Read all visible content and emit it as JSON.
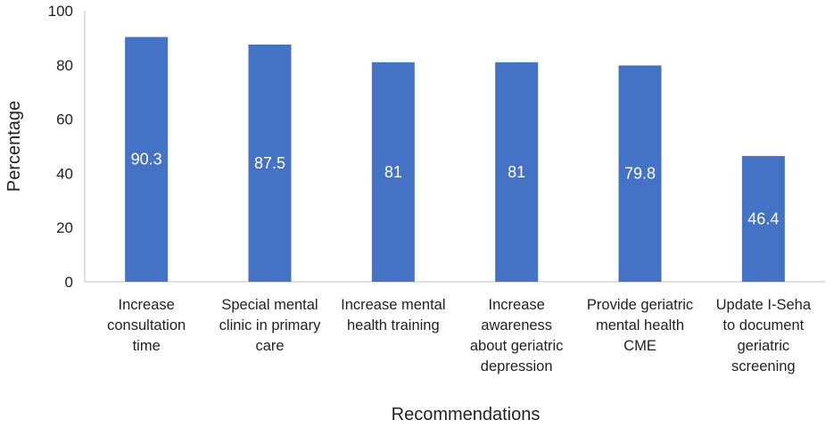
{
  "chart_data": {
    "type": "bar",
    "categories": [
      [
        "Increase",
        "consultation",
        "time"
      ],
      [
        "Special mental",
        "clinic  in primary",
        "care"
      ],
      [
        "Increase mental",
        "health training"
      ],
      [
        "Increase",
        "awareness",
        "about geriatric",
        "depression"
      ],
      [
        "Provide geriatric",
        "mental health",
        "CME"
      ],
      [
        "Update I-Seha",
        "to document",
        "geriatric",
        "screening"
      ]
    ],
    "values": [
      90.3,
      87.5,
      81,
      81,
      79.8,
      46.4
    ],
    "data_labels": [
      "90.3",
      "87.5",
      "81",
      "81",
      "79.8",
      "46.4"
    ],
    "title": "",
    "xlabel": "Recommendations",
    "ylabel": "Percentage",
    "ylim": [
      0,
      100
    ],
    "yticks": [
      0,
      20,
      40,
      60,
      80,
      100
    ],
    "grid": false,
    "legend": "none",
    "bar_color": "#4472C4",
    "label_color": "#ffffff"
  }
}
